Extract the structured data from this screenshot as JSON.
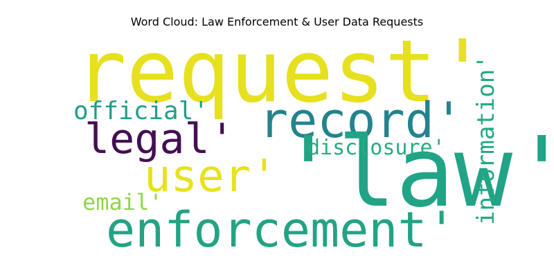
{
  "title": "Word Cloud: Law Enforcement & User Data Requests",
  "words": {
    "request": {
      "text": "request'",
      "color": "#e6e01f"
    },
    "record": {
      "text": "record'",
      "color": "#23838d"
    },
    "legal": {
      "text": "legal'",
      "color": "#440e54"
    },
    "official": {
      "text": "official'",
      "color": "#1f9e89"
    },
    "user": {
      "text": "user'",
      "color": "#e7e21b"
    },
    "law": {
      "text": "'law'",
      "color": "#20a485"
    },
    "disclosure": {
      "text": "disclosure'",
      "color": "#26ac81"
    },
    "email": {
      "text": "email'",
      "color": "#8fd646"
    },
    "enforcement": {
      "text": "enforcement'",
      "color": "#22a384"
    },
    "information": {
      "text": "information'",
      "color": "#24a884"
    }
  }
}
